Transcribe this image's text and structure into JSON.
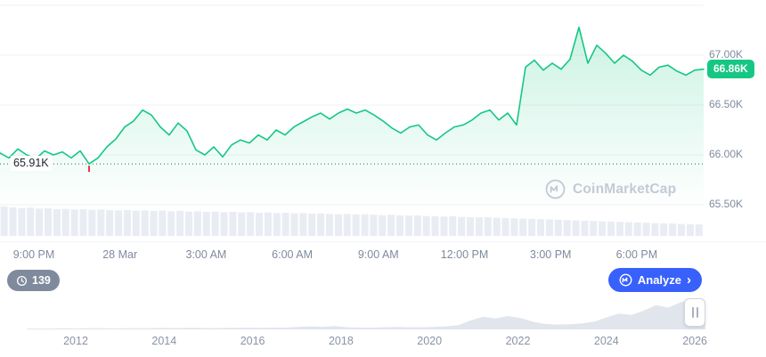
{
  "colors": {
    "green": "#16c784",
    "red": "#ea3943",
    "blue": "#3861fb",
    "grid": "#eff2f5",
    "axis_text": "#808a9d",
    "watermark": "#c3cad6",
    "volume_bar": "#e9edf3",
    "mini_fill": "#e1e5ec",
    "badge_gray": "#808a9d"
  },
  "watermark": {
    "text": "CoinMarketCap"
  },
  "toolbar": {
    "views_count": "139",
    "analyze_label": "Analyze",
    "chevron": "›"
  },
  "chart_data": {
    "type": "line",
    "title": "",
    "ylim": [
      65.4,
      67.5
    ],
    "y_axis_labels": [
      {
        "label": "67.00K",
        "value": 67.0
      },
      {
        "label": "66.50K",
        "value": 66.5
      },
      {
        "label": "66.00K",
        "value": 66.0
      },
      {
        "label": "65.50K",
        "value": 65.5
      }
    ],
    "y_gridlines": [
      67.5,
      67.0,
      66.5,
      66.0,
      65.5
    ],
    "x_axis_labels": [
      "9:00 PM",
      "28 Mar",
      "3:00 AM",
      "6:00 AM",
      "9:00 AM",
      "12:00 PM",
      "3:00 PM",
      "6:00 PM"
    ],
    "low_label": "65.91K",
    "low_value": 65.91,
    "current_label": "66.86K",
    "current_value": 66.86,
    "prices": [
      66.02,
      65.97,
      66.06,
      66.0,
      65.96,
      66.04,
      66.0,
      66.03,
      65.97,
      66.04,
      65.91,
      65.97,
      66.08,
      66.16,
      66.28,
      66.34,
      66.45,
      66.4,
      66.28,
      66.2,
      66.32,
      66.24,
      66.05,
      66.0,
      66.08,
      65.98,
      66.1,
      66.15,
      66.12,
      66.2,
      66.15,
      66.25,
      66.2,
      66.28,
      66.33,
      66.38,
      66.42,
      66.36,
      66.42,
      66.46,
      66.42,
      66.45,
      66.4,
      66.34,
      66.27,
      66.22,
      66.28,
      66.3,
      66.2,
      66.15,
      66.22,
      66.28,
      66.3,
      66.35,
      66.42,
      66.45,
      66.35,
      66.42,
      66.3,
      66.88,
      66.95,
      66.85,
      66.92,
      66.86,
      66.96,
      67.28,
      66.92,
      67.1,
      67.02,
      66.92,
      67.0,
      66.94,
      66.85,
      66.8,
      66.88,
      66.9,
      66.84,
      66.8,
      66.85,
      66.86
    ],
    "volume_relative": [
      1.0,
      0.97,
      0.95,
      0.96,
      0.93,
      0.94,
      0.91,
      0.92,
      0.9,
      0.91,
      0.89,
      0.9,
      0.88,
      0.87,
      0.88,
      0.86,
      0.87,
      0.85,
      0.86,
      0.84,
      0.85,
      0.83,
      0.84,
      0.82,
      0.83,
      0.81,
      0.82,
      0.8,
      0.81,
      0.79,
      0.8,
      0.78,
      0.79,
      0.77,
      0.78,
      0.76,
      0.77,
      0.75,
      0.74,
      0.75,
      0.73,
      0.74,
      0.72,
      0.71,
      0.72,
      0.7,
      0.69,
      0.7,
      0.68,
      0.67,
      0.66,
      0.67,
      0.65,
      0.64,
      0.63,
      0.64,
      0.62,
      0.61,
      0.6,
      0.59,
      0.58,
      0.57,
      0.56,
      0.55,
      0.54,
      0.53,
      0.52,
      0.51,
      0.5,
      0.49,
      0.48,
      0.47,
      0.46,
      0.45,
      0.44,
      0.43,
      0.42,
      0.41,
      0.4,
      0.39
    ],
    "minimap": {
      "years": [
        "2012",
        "2014",
        "2016",
        "2018",
        "2020",
        "2022",
        "2024",
        "2026"
      ],
      "values": [
        0.03,
        0.03,
        0.03,
        0.04,
        0.03,
        0.04,
        0.04,
        0.03,
        0.04,
        0.04,
        0.04,
        0.05,
        0.04,
        0.05,
        0.05,
        0.04,
        0.05,
        0.05,
        0.06,
        0.05,
        0.06,
        0.06,
        0.08,
        0.1,
        0.08,
        0.11,
        0.07,
        0.06,
        0.06,
        0.07,
        0.08,
        0.07,
        0.07,
        0.08,
        0.1,
        0.14,
        0.3,
        0.42,
        0.36,
        0.44,
        0.38,
        0.26,
        0.18,
        0.16,
        0.17,
        0.2,
        0.26,
        0.4,
        0.52,
        0.48,
        0.62,
        0.8,
        0.72,
        0.9,
        1.0,
        0.86
      ]
    }
  }
}
